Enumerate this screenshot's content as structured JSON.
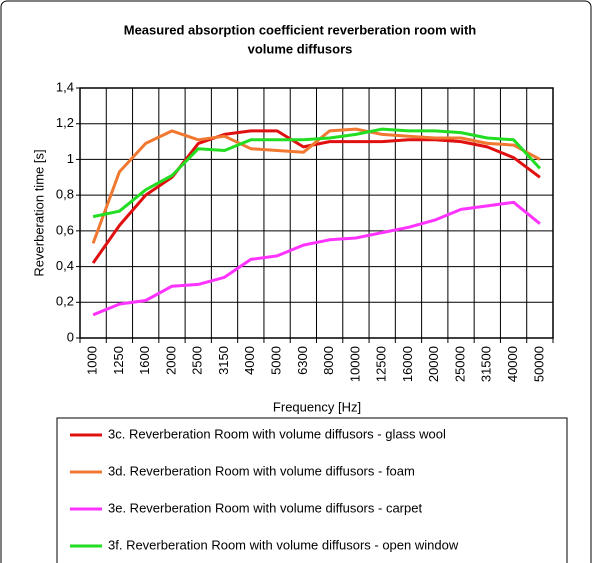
{
  "chart_data": {
    "type": "line",
    "title": [
      "Measured absorption coefficient reverberation room with",
      "volume diffusors"
    ],
    "x_label": "Frequency [Hz]",
    "y_label": "Reverberation time [s]",
    "categories": [
      "1000",
      "1250",
      "1600",
      "2000",
      "2500",
      "3150",
      "4000",
      "5000",
      "6300",
      "8000",
      "10000",
      "12500",
      "16000",
      "20000",
      "25000",
      "31500",
      "40000",
      "50000"
    ],
    "ylim": [
      0,
      1.4
    ],
    "yticks": [
      0,
      {
        "value": 0.2,
        "label": "0,2"
      },
      {
        "value": 0.4,
        "label": "0,4"
      },
      {
        "value": 0.6,
        "label": "0,6"
      },
      {
        "value": 0.8,
        "label": "0,8"
      },
      1,
      {
        "value": 1.2,
        "label": "1,2"
      },
      {
        "value": 1.4,
        "label": "1,4"
      }
    ],
    "grid": true,
    "series": [
      {
        "name": "3c. Reverberation Room with volume diffusors - glass wool",
        "color": "#e01010",
        "values": [
          0.42,
          0.63,
          0.8,
          0.9,
          1.09,
          1.14,
          1.16,
          1.16,
          1.07,
          1.1,
          1.1,
          1.1,
          1.11,
          1.11,
          1.1,
          1.07,
          1.01,
          0.9
        ]
      },
      {
        "name": "3d. Reverberation Room with volume diffusors - foam",
        "color": "#f07830",
        "values": [
          0.53,
          0.93,
          1.09,
          1.16,
          1.11,
          1.13,
          1.06,
          1.05,
          1.04,
          1.16,
          1.17,
          1.14,
          1.13,
          1.12,
          1.12,
          1.09,
          1.08,
          1.0
        ]
      },
      {
        "name": "3e. Reverberation Room with volume diffusors - carpet",
        "color": "#ff33ff",
        "values": [
          0.13,
          0.19,
          0.21,
          0.29,
          0.3,
          0.34,
          0.44,
          0.46,
          0.52,
          0.55,
          0.56,
          0.59,
          0.62,
          0.66,
          0.72,
          0.74,
          0.76,
          0.64
        ]
      },
      {
        "name": "3f. Reverberation Room with volume diffusors - open window",
        "color": "#22dd22",
        "values": [
          0.68,
          0.71,
          0.83,
          0.91,
          1.06,
          1.05,
          1.11,
          1.11,
          1.11,
          1.12,
          1.14,
          1.17,
          1.16,
          1.16,
          1.15,
          1.12,
          1.11,
          0.95
        ]
      }
    ]
  }
}
